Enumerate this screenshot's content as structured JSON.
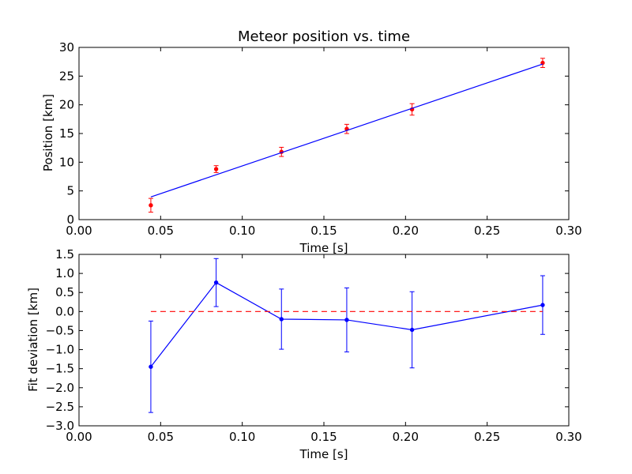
{
  "colors": {
    "fit_line": "#0000ff",
    "measurements": "#ff0000",
    "deviation": "#0000ff",
    "zero_line": "#ff0000"
  },
  "chart_data": [
    {
      "type": "scatter",
      "title": "Meteor position vs. time",
      "xlabel": "Time [s]",
      "ylabel": "Position [km]",
      "xlim": [
        0.0,
        0.3
      ],
      "ylim": [
        0,
        30
      ],
      "xticks": [
        "0.00",
        "0.05",
        "0.10",
        "0.15",
        "0.20",
        "0.25",
        "0.30"
      ],
      "yticks": [
        "0",
        "5",
        "10",
        "15",
        "20",
        "25",
        "30"
      ],
      "grid": false,
      "series": [
        {
          "kind": "errorbar",
          "x": [
            0.044,
            0.084,
            0.124,
            0.164,
            0.204,
            0.284
          ],
          "y": [
            2.5,
            8.8,
            11.8,
            15.8,
            19.2,
            27.3
          ],
          "yerr": [
            1.2,
            0.6,
            0.8,
            0.8,
            1.0,
            0.8
          ]
        },
        {
          "kind": "line",
          "x": [
            0.044,
            0.284
          ],
          "y": [
            3.95,
            27.1
          ]
        }
      ]
    },
    {
      "type": "line",
      "title": "",
      "xlabel": "Time [s]",
      "ylabel": "Fit deviation [km]",
      "xlim": [
        0.0,
        0.3
      ],
      "ylim": [
        -3.0,
        1.5
      ],
      "xticks": [
        "0.00",
        "0.05",
        "0.10",
        "0.15",
        "0.20",
        "0.25",
        "0.30"
      ],
      "yticks": [
        "−3.0",
        "−2.5",
        "−2.0",
        "−1.5",
        "−1.0",
        "−0.5",
        "0.0",
        "0.5",
        "1.0",
        "1.5"
      ],
      "grid": false,
      "series": [
        {
          "kind": "errorbar-line",
          "x": [
            0.044,
            0.084,
            0.124,
            0.164,
            0.204,
            0.284
          ],
          "y": [
            -1.45,
            0.76,
            -0.2,
            -0.22,
            -0.48,
            0.17
          ],
          "yerr": [
            1.2,
            0.63,
            0.79,
            0.84,
            1.0,
            0.77
          ]
        },
        {
          "kind": "dashed-line",
          "x": [
            0.044,
            0.284
          ],
          "y": [
            0.0,
            0.0
          ]
        }
      ]
    }
  ]
}
